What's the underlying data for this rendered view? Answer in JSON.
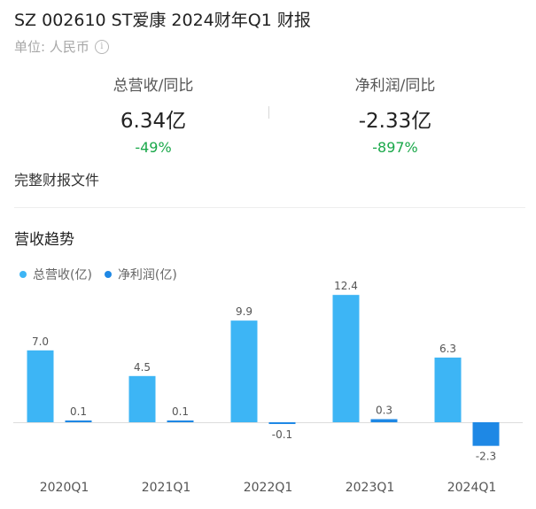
{
  "header": {
    "title": "SZ 002610 ST爱康 2024财年Q1 财报",
    "unit_label": "单位: 人民币",
    "info_icon": "info-circle-icon"
  },
  "metrics": [
    {
      "label": "总营收/同比",
      "value": "6.34亿",
      "change": "-49%",
      "change_color": "#1aa84a"
    },
    {
      "label": "净利润/同比",
      "value": "-2.33亿",
      "change": "-897%",
      "change_color": "#1aa84a"
    }
  ],
  "report_link": "完整财报文件",
  "section_title": "营收趋势",
  "colors": {
    "revenue": "#3db5f5",
    "profit": "#1e88e5",
    "axis": "#dddddd",
    "tick_text": "#555555",
    "label_text": "#555555"
  },
  "chart_data": {
    "type": "bar",
    "categories": [
      "2020Q1",
      "2021Q1",
      "2022Q1",
      "2023Q1",
      "2024Q1"
    ],
    "series": [
      {
        "name": "总营收(亿)",
        "values": [
          7.0,
          4.5,
          9.9,
          12.4,
          6.3
        ],
        "labels": [
          "7.0",
          "4.5",
          "9.9",
          "12.4",
          "6.3"
        ]
      },
      {
        "name": "净利润(亿)",
        "values": [
          0.1,
          0.1,
          -0.1,
          0.3,
          -2.3
        ],
        "labels": [
          "0.1",
          "0.1",
          "-0.1",
          "0.3",
          "-2.3"
        ]
      }
    ],
    "legend": "top-left",
    "grid": false
  }
}
